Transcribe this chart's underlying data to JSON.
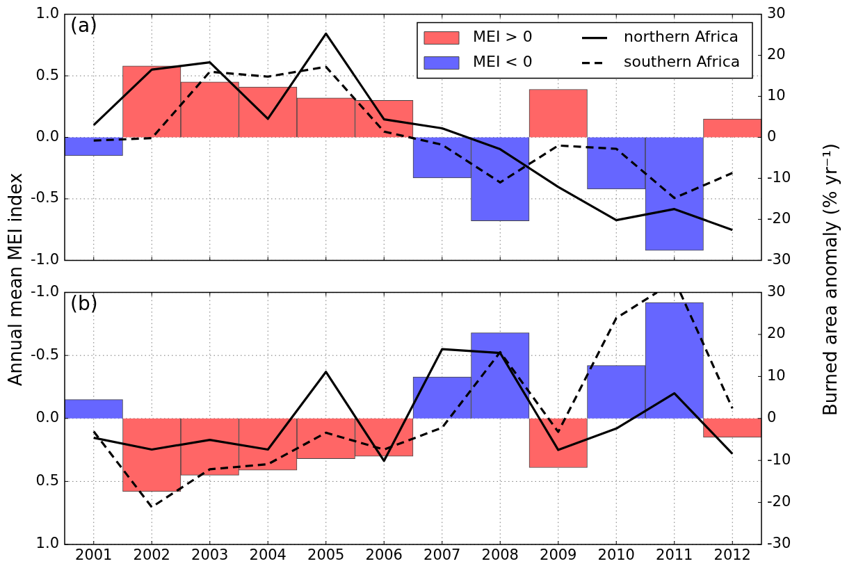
{
  "chart_data": [
    {
      "type": "bar",
      "x": [
        2001,
        2002,
        2003,
        2004,
        2005,
        2006,
        2007,
        2008,
        2009,
        2010,
        2011,
        2012
      ],
      "xlim": [
        2000.5,
        2012.5
      ],
      "xticks": [
        2001,
        2002,
        2003,
        2004,
        2005,
        2006,
        2007,
        2008,
        2009,
        2010,
        2011,
        2012
      ],
      "series": [
        {
          "name": "MEI > 0",
          "color": "#ff6666",
          "values": [
            null,
            0.58,
            0.45,
            0.41,
            0.32,
            0.3,
            null,
            null,
            0.39,
            null,
            null,
            0.15
          ]
        },
        {
          "name": "MEI < 0",
          "color": "#6666ff",
          "values": [
            -0.15,
            null,
            null,
            null,
            null,
            null,
            -0.33,
            -0.68,
            null,
            -0.42,
            -0.92,
            null
          ]
        },
        {
          "name": "northern Africa",
          "type": "line",
          "axis": "y2",
          "line_style": "solid",
          "color": "#000000",
          "values": [
            3,
            16.5,
            18.3,
            4.5,
            25.3,
            4.4,
            2.2,
            -2.9,
            -12.1,
            -20.2,
            -17.5,
            -22.6
          ]
        },
        {
          "name": "southern Africa",
          "type": "line",
          "axis": "y2",
          "line_style": "dashed",
          "color": "#000000",
          "values": [
            -0.8,
            -0.2,
            16,
            14.8,
            17.2,
            1.4,
            -1.8,
            -11,
            -2,
            -2.8,
            -14.8,
            -8.7
          ]
        }
      ],
      "ylim": [
        -1,
        1
      ],
      "yticks": [
        {
          "value": -1,
          "label": "-1.0"
        },
        {
          "value": -0.5,
          "label": "-0.5"
        },
        {
          "value": 0,
          "label": "0.0"
        },
        {
          "value": 0.5,
          "label": "0.5"
        },
        {
          "value": 1,
          "label": "1.0"
        }
      ],
      "y2lim": [
        -30,
        30
      ],
      "y2ticks": [
        -30,
        -20,
        -10,
        0,
        10,
        20,
        30
      ],
      "ylabel": "Annual mean MEI index",
      "y2label": "Burned area anomaly (% yr⁻¹)",
      "annotations": [
        "(a)"
      ],
      "grid": true,
      "legend": "top right",
      "tick_labels": "y"
    },
    {
      "type": "bar",
      "x": [
        2001,
        2002,
        2003,
        2004,
        2005,
        2006,
        2007,
        2008,
        2009,
        2010,
        2011,
        2012
      ],
      "xlim": [
        2000.5,
        2012.5
      ],
      "xticks": [
        2001,
        2002,
        2003,
        2004,
        2005,
        2006,
        2007,
        2008,
        2009,
        2010,
        2011,
        2012
      ],
      "series": [
        {
          "color": "#ff6666",
          "values": [
            null,
            0.58,
            0.45,
            0.41,
            0.32,
            0.3,
            null,
            null,
            0.39,
            null,
            null,
            0.15
          ]
        },
        {
          "color": "#6666ff",
          "values": [
            -0.15,
            null,
            null,
            null,
            null,
            null,
            -0.33,
            -0.68,
            null,
            -0.42,
            -0.92,
            null
          ]
        },
        {
          "type": "line",
          "axis": "y2",
          "line_style": "solid",
          "color": "#000000",
          "values": [
            -4.6,
            -7.4,
            -5.1,
            -7.4,
            11.1,
            -10.1,
            16.5,
            15.6,
            -7.5,
            -2.4,
            6.0,
            -8.4
          ]
        },
        {
          "type": "line",
          "axis": "y2",
          "line_style": "dashed",
          "color": "#000000",
          "x": [
            2001,
            2002,
            2003,
            2004,
            2005,
            2006,
            2007,
            2008,
            2009,
            2010,
            2010.7,
            2011,
            2011.1,
            2012
          ],
          "values": [
            -3.1,
            -21.1,
            -12.1,
            -10.9,
            -3.4,
            -7.4,
            -2.2,
            15.8,
            -3.2,
            23.9,
            30,
            null,
            30,
            2.4
          ]
        }
      ],
      "ylim": [
        1,
        -1
      ],
      "yticks": [
        {
          "value": 1,
          "label": "1.0"
        },
        {
          "value": 0.5,
          "label": "0.5"
        },
        {
          "value": 0,
          "label": "0.0"
        },
        {
          "value": -0.5,
          "label": "-0.5"
        },
        {
          "value": -1,
          "label": "-1.0"
        }
      ],
      "y2lim": [
        -30,
        30
      ],
      "y2ticks": [
        -30,
        -20,
        -10,
        0,
        10,
        20,
        30
      ],
      "annotations": [
        "(b)"
      ],
      "grid": true
    }
  ]
}
